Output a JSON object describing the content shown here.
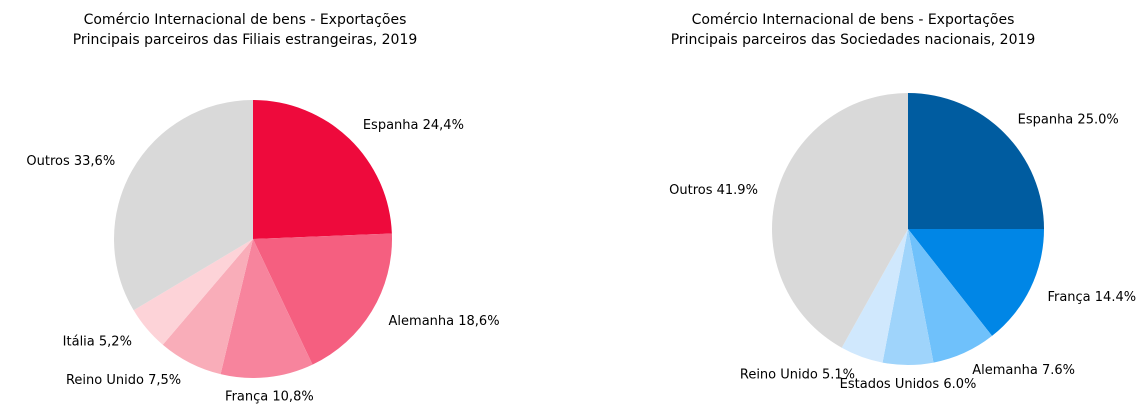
{
  "chart_data": [
    {
      "type": "pie",
      "title": "Comércio Internacional de bens - Exportações",
      "subtitle": "Principais parceiros das Filiais estrangeiras, 2019",
      "categories": [
        "Espanha",
        "Alemanha",
        "França",
        "Reino Unido",
        "Itália",
        "Outros"
      ],
      "values": [
        24.4,
        18.6,
        10.8,
        7.5,
        5.2,
        33.6
      ],
      "value_labels": [
        "24,4%",
        "18,6%",
        "10,8%",
        "7,5%",
        "5,2%",
        "33,6%"
      ],
      "colors": [
        "#ee0a3c",
        "#f55f80",
        "#f7849d",
        "#f9adb9",
        "#fdd3d8",
        "#d9d9d9"
      ]
    },
    {
      "type": "pie",
      "title": "Comércio Internacional de bens - Exportações",
      "subtitle": "Principais parceiros das Sociedades nacionais, 2019",
      "categories": [
        "Espanha",
        "França",
        "Alemanha",
        "Estados Unidos",
        "Reino Unido",
        "Outros"
      ],
      "values": [
        25.0,
        14.4,
        7.6,
        6.0,
        5.1,
        41.9
      ],
      "value_labels": [
        "25.0%",
        "14.4%",
        "7.6%",
        "6.0%",
        "5.1%",
        "41.9%"
      ],
      "colors": [
        "#005ca0",
        "#0086e6",
        "#6fc1fb",
        "#9fd4fb",
        "#d0e8fd",
        "#d9d9d9"
      ]
    }
  ]
}
